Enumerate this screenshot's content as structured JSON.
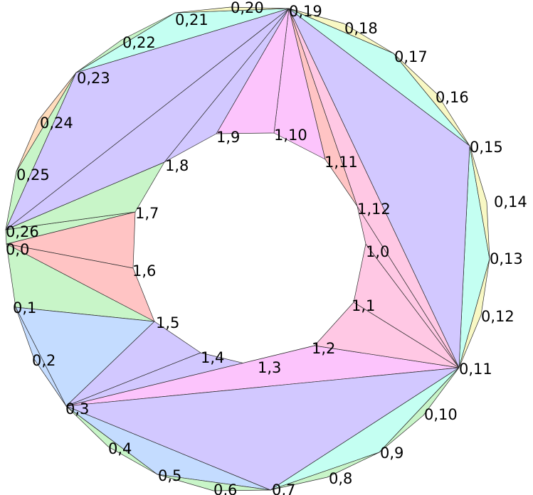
{
  "diagram": {
    "outer_ring_labels": [
      "0,0",
      "0,1",
      "0,2",
      "0,3",
      "0,4",
      "0,5",
      "0,6",
      "0,7",
      "0,8",
      "0,9",
      "0,10",
      "0,11",
      "0,12",
      "0,13",
      "0,14",
      "0,15",
      "0,16",
      "0,17",
      "0,18",
      "0,19",
      "0,20",
      "0,21",
      "0,22",
      "0,23",
      "0,24",
      "0,25",
      "0,26"
    ],
    "inner_ring_labels": [
      "1,0",
      "1,1",
      "1,2",
      "1,3",
      "1,4",
      "1,5",
      "1,6",
      "1,7",
      "1,8",
      "1,9",
      "1,10",
      "1,11",
      "1,12"
    ],
    "region_colors": {
      "red": "#ffc4c4",
      "green": "#c8f5c8",
      "blue": "#c4dcff",
      "violet": "#d2c8ff",
      "magenta": "#fcc4fc",
      "pink": "#ffc8e4",
      "cyan": "#c4fff2",
      "yellow": "#f8f8c4",
      "orange": "#ffdcbc"
    },
    "triangles": [
      {
        "v": [
          "o0",
          "i6",
          "i7"
        ],
        "color": "red"
      },
      {
        "v": [
          "o0",
          "i5",
          "i6"
        ],
        "color": "red"
      },
      {
        "v": [
          "o0",
          "o26",
          "i7"
        ],
        "color": "green"
      },
      {
        "v": [
          "o26",
          "i7",
          "i8"
        ],
        "color": "green"
      },
      {
        "v": [
          "o0",
          "o1",
          "i5"
        ],
        "color": "green"
      },
      {
        "v": [
          "o1",
          "o3",
          "i5"
        ],
        "color": "blue"
      },
      {
        "v": [
          "o1",
          "o2",
          "o3"
        ],
        "color": "blue"
      },
      {
        "v": [
          "o3",
          "i4",
          "i5"
        ],
        "color": "violet"
      },
      {
        "v": [
          "o3",
          "i3",
          "i4"
        ],
        "color": "violet"
      },
      {
        "v": [
          "o3",
          "i2",
          "i3"
        ],
        "color": "magenta"
      },
      {
        "v": [
          "o3",
          "o11",
          "i2"
        ],
        "color": "magenta"
      },
      {
        "v": [
          "o3",
          "o7",
          "o11"
        ],
        "color": "violet"
      },
      {
        "v": [
          "o3",
          "o5",
          "o7"
        ],
        "color": "blue"
      },
      {
        "v": [
          "o3",
          "o4",
          "o5"
        ],
        "color": "green"
      },
      {
        "v": [
          "o5",
          "o6",
          "o7"
        ],
        "color": "green"
      },
      {
        "v": [
          "o7",
          "o9",
          "o11"
        ],
        "color": "cyan"
      },
      {
        "v": [
          "o7",
          "o8",
          "o9"
        ],
        "color": "green"
      },
      {
        "v": [
          "o9",
          "o10",
          "o11"
        ],
        "color": "green"
      },
      {
        "v": [
          "o11",
          "o13",
          "o15"
        ],
        "color": "cyan"
      },
      {
        "v": [
          "o11",
          "o12",
          "o13"
        ],
        "color": "yellow"
      },
      {
        "v": [
          "o13",
          "o14",
          "o15"
        ],
        "color": "yellow"
      },
      {
        "v": [
          "o11",
          "o15",
          "o19"
        ],
        "color": "violet"
      },
      {
        "v": [
          "o15",
          "o17",
          "o19"
        ],
        "color": "cyan"
      },
      {
        "v": [
          "o15",
          "o16",
          "o17"
        ],
        "color": "yellow"
      },
      {
        "v": [
          "o17",
          "o18",
          "o19"
        ],
        "color": "yellow"
      },
      {
        "v": [
          "o11",
          "i1",
          "i2"
        ],
        "color": "pink"
      },
      {
        "v": [
          "o11",
          "i0",
          "i1"
        ],
        "color": "pink"
      },
      {
        "v": [
          "o11",
          "i12",
          "i0"
        ],
        "color": "pink"
      },
      {
        "v": [
          "o11",
          "o19",
          "i12"
        ],
        "color": "pink"
      },
      {
        "v": [
          "o19",
          "i11",
          "i12"
        ],
        "color": "red"
      },
      {
        "v": [
          "o19",
          "i10",
          "i11"
        ],
        "color": "magenta"
      },
      {
        "v": [
          "o19",
          "i9",
          "i10"
        ],
        "color": "magenta"
      },
      {
        "v": [
          "o19",
          "i8",
          "i9"
        ],
        "color": "violet"
      },
      {
        "v": [
          "o19",
          "o26",
          "i8"
        ],
        "color": "violet"
      },
      {
        "v": [
          "o19",
          "o23",
          "o26"
        ],
        "color": "violet"
      },
      {
        "v": [
          "o19",
          "o21",
          "o23"
        ],
        "color": "cyan"
      },
      {
        "v": [
          "o19",
          "o20",
          "o21"
        ],
        "color": "yellow"
      },
      {
        "v": [
          "o21",
          "o22",
          "o23"
        ],
        "color": "green"
      },
      {
        "v": [
          "o23",
          "o25",
          "o26"
        ],
        "color": "green"
      },
      {
        "v": [
          "o23",
          "o24",
          "o25"
        ],
        "color": "orange"
      }
    ]
  }
}
